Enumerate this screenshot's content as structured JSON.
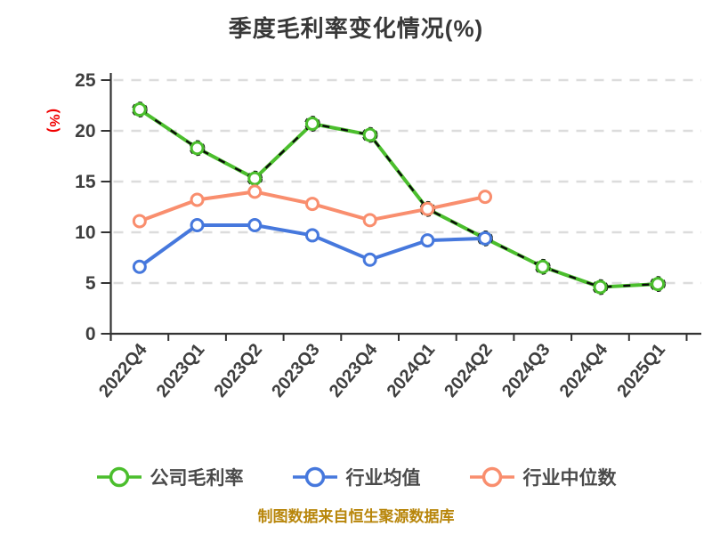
{
  "chart": {
    "title": "季度毛利率变化情况(%)",
    "y_unit_label": "(%)",
    "footer_caption": "制图数据来自恒生聚源数据库"
  },
  "chart_data": {
    "type": "line",
    "title": "季度毛利率变化情况(%)",
    "xlabel": "",
    "ylabel": "(%)",
    "categories": [
      "2022Q4",
      "2023Q1",
      "2023Q2",
      "2023Q3",
      "2023Q4",
      "2024Q1",
      "2024Q2",
      "2024Q3",
      "2024Q4",
      "2025Q1"
    ],
    "series": [
      {
        "name": "公司毛利率",
        "color": "#4bbe2d",
        "values": [
          22.1,
          18.3,
          15.3,
          20.7,
          19.6,
          12.3,
          9.4,
          6.6,
          4.6,
          4.9
        ]
      },
      {
        "name": "行业均值",
        "color": "#4678dd",
        "values": [
          6.6,
          10.7,
          10.7,
          9.7,
          7.3,
          9.2,
          9.4,
          null,
          null,
          null
        ]
      },
      {
        "name": "行业中位数",
        "color": "#f98e6e",
        "values": [
          11.1,
          13.2,
          14.0,
          12.8,
          11.2,
          12.3,
          13.5,
          null,
          null,
          null
        ]
      }
    ],
    "ylim": [
      0,
      25
    ],
    "yticks": [
      0,
      5,
      10,
      15,
      20,
      25
    ],
    "grid": true,
    "grid_style": "dashed",
    "legend_position": "bottom",
    "annotations": {
      "black_dashed_overlay_on_series": "公司毛利率"
    }
  },
  "legend": {
    "items": [
      {
        "label": "公司毛利率",
        "color": "#4bbe2d"
      },
      {
        "label": "行业均值",
        "color": "#4678dd"
      },
      {
        "label": "行业中位数",
        "color": "#f98e6e"
      }
    ]
  },
  "colors": {
    "background": "#ffffff",
    "title_text": "#383838",
    "axis_line": "#333333",
    "tick_label": "#3f3f3f",
    "grid_line": "#dcdcdc",
    "unit_label_red": "#f00000",
    "footer_gold": "#b8860b",
    "legend_text": "#4a4a4a",
    "overlay_dash": "#0a0a0a",
    "marker_fill": "#ffffff"
  }
}
